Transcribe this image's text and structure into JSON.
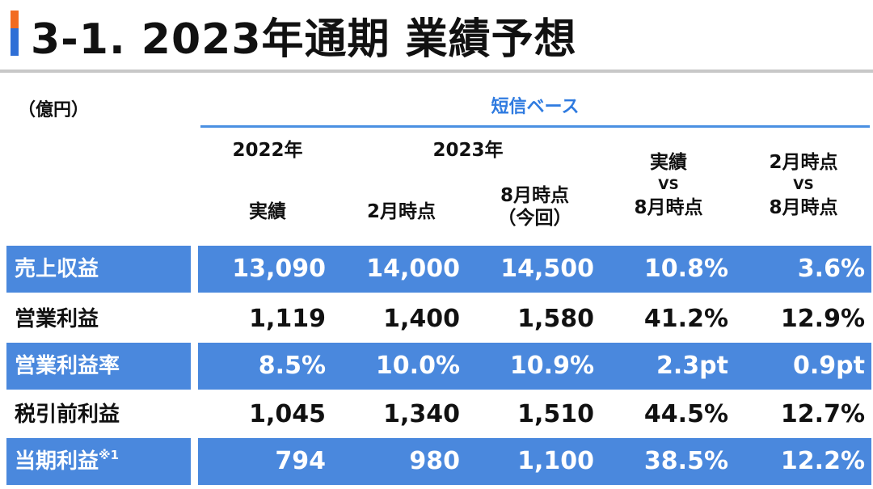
{
  "header": {
    "title": "3-1. 2023年通期 業績予想"
  },
  "unit_label": "（億円）",
  "basis_label": "短信ベース",
  "columns": {
    "year_2022": "2022年",
    "year_2023": "2023年",
    "col1": "実績",
    "col2": "2月時点",
    "col3_line1": "8月時点",
    "col3_line2": "（今回）",
    "col4_line1": "実績",
    "col4_line2": "VS",
    "col4_line3": "8月時点",
    "col5_line1": "2月時点",
    "col5_line2": "VS",
    "col5_line3": "8月時点"
  },
  "rows": [
    {
      "label": "売上収益",
      "note": "",
      "values": [
        "13,090",
        "14,000",
        "14,500",
        "10.8%",
        "3.6%"
      ],
      "highlight": true
    },
    {
      "label": "営業利益",
      "note": "",
      "values": [
        "1,119",
        "1,400",
        "1,580",
        "41.2%",
        "12.9%"
      ],
      "highlight": false
    },
    {
      "label": "営業利益率",
      "note": "",
      "values": [
        "8.5%",
        "10.0%",
        "10.9%",
        "2.3pt",
        "0.9pt"
      ],
      "highlight": true
    },
    {
      "label": "税引前利益",
      "note": "",
      "values": [
        "1,045",
        "1,340",
        "1,510",
        "44.5%",
        "12.7%"
      ],
      "highlight": false
    },
    {
      "label": "当期利益",
      "note": "※1",
      "values": [
        "794",
        "980",
        "1,100",
        "38.5%",
        "12.2%"
      ],
      "highlight": true
    }
  ],
  "colors": {
    "accent_orange": "#f26b21",
    "accent_blue": "#2f6fd6",
    "row_blue": "#4a88dd",
    "basis_blue": "#2f7be0"
  }
}
